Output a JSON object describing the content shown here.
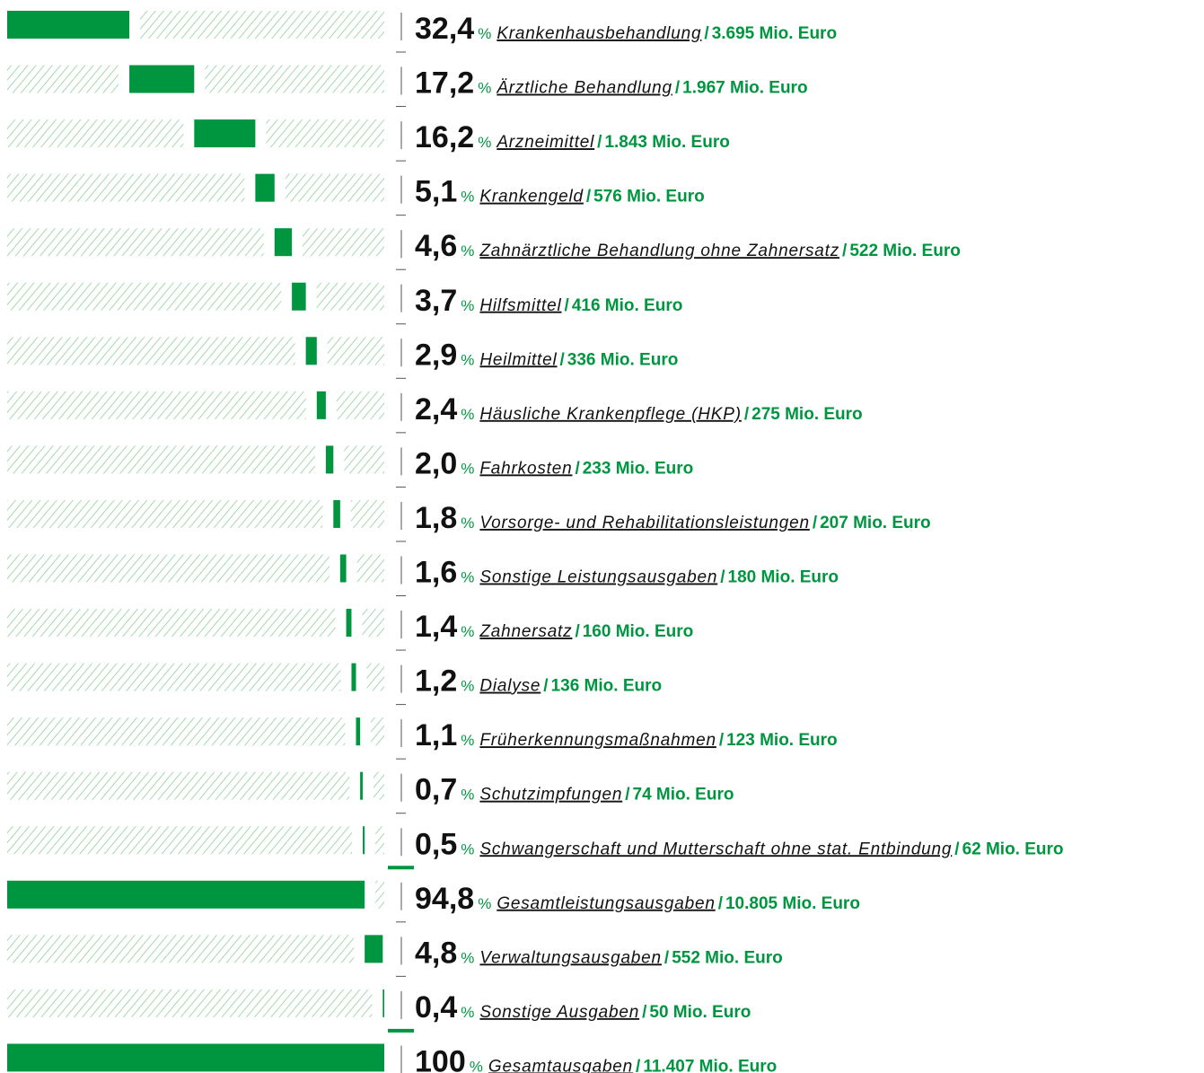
{
  "chart_data": {
    "type": "waterfall",
    "color": "#009640",
    "hatch_color": "#8fcf9f",
    "unit_label": "%",
    "xlim": [
      0,
      100
    ],
    "totals": [
      16,
      19
    ],
    "categories": [
      "Krankenhausbehandlung",
      "Ärztliche Behandlung",
      "Arzneimittel",
      "Krankengeld",
      "Zahnärztliche Behandlung ohne Zahnersatz",
      "Hilfsmittel",
      "Heilmittel",
      "Häusliche Krankenpflege (HKP)",
      "Fahrkosten",
      "Vorsorge- und Rehabilitationsleistungen",
      "Sonstige Leistungsausgaben",
      "Zahnersatz",
      "Dialyse",
      "Früherkennungsmaßnahmen",
      "Schutzimpfungen",
      "Schwangerschaft und Mutterschaft ohne stat. Entbindung",
      "Gesamtleistungsausgaben",
      "Verwaltungsausgaben",
      "Sonstige Ausgaben",
      "Gesamtausgaben"
    ],
    "values": [
      32.4,
      17.2,
      16.2,
      5.1,
      4.6,
      3.7,
      2.9,
      2.4,
      2.0,
      1.8,
      1.6,
      1.4,
      1.2,
      1.1,
      0.7,
      0.5,
      94.8,
      4.8,
      0.4,
      100
    ],
    "value_labels": [
      "32,4",
      "17,2",
      "16,2",
      "5,1",
      "4,6",
      "3,7",
      "2,9",
      "2,4",
      "2,0",
      "1,8",
      "1,6",
      "1,4",
      "1,2",
      "1,1",
      "0,7",
      "0,5",
      "94,8",
      "4,8",
      "0,4",
      "100"
    ],
    "amounts": [
      3695,
      1967,
      1843,
      576,
      522,
      416,
      336,
      275,
      233,
      207,
      180,
      160,
      136,
      123,
      74,
      62,
      10805,
      552,
      50,
      11407
    ],
    "amount_labels": [
      "3.695 Mio. Euro",
      "1.967 Mio. Euro",
      "1.843 Mio. Euro",
      "576 Mio. Euro",
      "522 Mio. Euro",
      "416 Mio. Euro",
      "336 Mio. Euro",
      "275 Mio. Euro",
      "233 Mio. Euro",
      "207 Mio. Euro",
      "180 Mio. Euro",
      "160 Mio. Euro",
      "136 Mio. Euro",
      "123 Mio. Euro",
      "74 Mio. Euro",
      "62 Mio. Euro",
      "10.805 Mio. Euro",
      "552 Mio. Euro",
      "50 Mio. Euro",
      "11.407 Mio. Euro"
    ]
  }
}
